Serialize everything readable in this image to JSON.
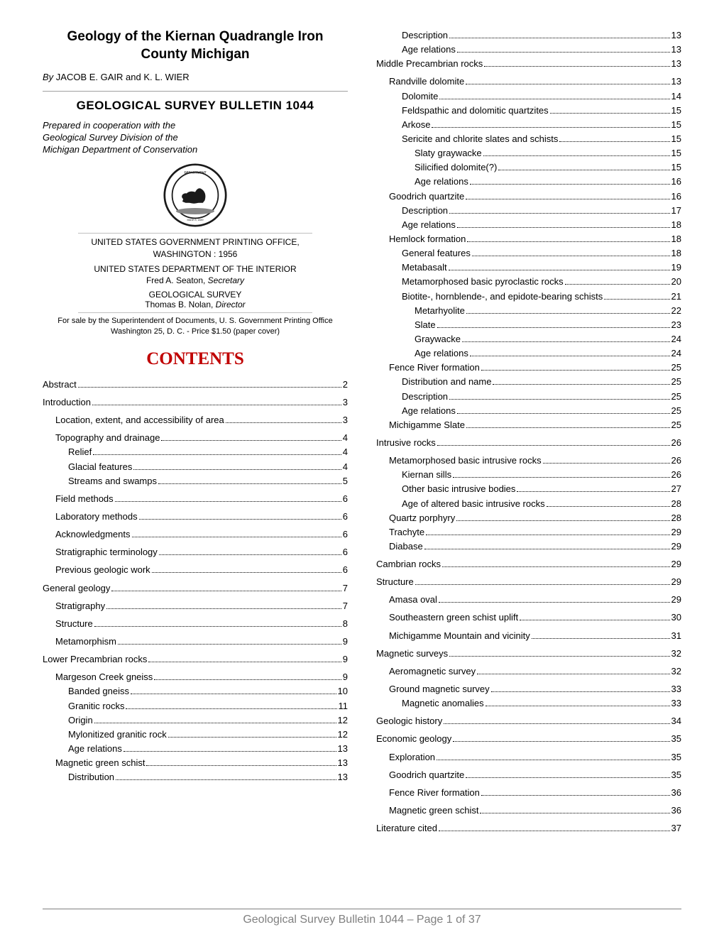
{
  "colors": {
    "text": "#000000",
    "background": "#ffffff",
    "contents_header": "#c00000",
    "hr_gray": "#a0a0a0",
    "footer_gray": "#808080",
    "seal_dark": "#1a1a1a",
    "seal_gray": "#888888"
  },
  "header": {
    "title": "Geology of the Kiernan Quadrangle Iron County Michigan",
    "byline_by": "By",
    "byline_authors": " JACOB E. GAIR and K. L. WIER",
    "bulletin": "GEOLOGICAL SURVEY BULLETIN 1044",
    "prepared_line1": "Prepared in cooperation with the",
    "prepared_line2": "Geological Survey Division of the",
    "prepared_line3": "Michigan Department of Conservation",
    "seal_top_text": "DEPARTMENT OF THE INTERIOR",
    "seal_bottom_text": "March 3, 1849"
  },
  "publisher": {
    "office": "UNITED STATES GOVERNMENT PRINTING OFFICE,",
    "location_year": "WASHINGTON : 1956",
    "department": "UNITED STATES DEPARTMENT OF THE INTERIOR",
    "secretary_name": "Fred A. Seaton, ",
    "secretary_title": "Secretary",
    "survey": "GEOLOGICAL SURVEY",
    "director_name": "Thomas B. Nolan, ",
    "director_title": "Director",
    "sale_line1": "For sale by the Superintendent of Documents, U. S. Government Printing Office",
    "sale_line2": "Washington 25, D. C. - Price $1.50 (paper cover)"
  },
  "contents_header": "CONTENTS",
  "toc_left": [
    {
      "label": "Abstract",
      "page": "2",
      "indent": 0,
      "spaced": true
    },
    {
      "label": "Introduction",
      "page": "3",
      "indent": 0,
      "spaced": true
    },
    {
      "label": "Location, extent, and accessibility of area",
      "page": "3",
      "indent": 1,
      "spaced": true
    },
    {
      "label": "Topography and drainage",
      "page": "4",
      "indent": 1,
      "spaced": true
    },
    {
      "label": "Relief",
      "page": "4",
      "indent": 2
    },
    {
      "label": "Glacial features",
      "page": "4",
      "indent": 2
    },
    {
      "label": "Streams and swamps",
      "page": "5",
      "indent": 2
    },
    {
      "label": "Field methods",
      "page": "6",
      "indent": 1,
      "spaced": true
    },
    {
      "label": "Laboratory methods",
      "page": "6",
      "indent": 1,
      "spaced": true
    },
    {
      "label": "Acknowledgments",
      "page": "6",
      "indent": 1,
      "spaced": true
    },
    {
      "label": "Stratigraphic terminology",
      "page": "6",
      "indent": 1,
      "spaced": true
    },
    {
      "label": "Previous geologic work",
      "page": "6",
      "indent": 1,
      "spaced": true
    },
    {
      "label": "General geology",
      "page": "7",
      "indent": 0,
      "spaced": true
    },
    {
      "label": "Stratigraphy",
      "page": "7",
      "indent": 1,
      "spaced": true
    },
    {
      "label": "Structure",
      "page": "8",
      "indent": 1,
      "spaced": true
    },
    {
      "label": "Metamorphism",
      "page": "9",
      "indent": 1,
      "spaced": true
    },
    {
      "label": "Lower Precambrian rocks",
      "page": "9",
      "indent": 0,
      "spaced": true
    },
    {
      "label": "Margeson Creek gneiss",
      "page": "9",
      "indent": 1,
      "spaced": true
    },
    {
      "label": "Banded gneiss",
      "page": "10",
      "indent": 2
    },
    {
      "label": "Granitic rocks",
      "page": "11",
      "indent": 2
    },
    {
      "label": "Origin",
      "page": "12",
      "indent": 2
    },
    {
      "label": "Mylonitized granitic rock",
      "page": "12",
      "indent": 2
    },
    {
      "label": "Age relations",
      "page": "13",
      "indent": 2
    },
    {
      "label": "Magnetic green schist",
      "page": "13",
      "indent": 1
    },
    {
      "label": "Distribution",
      "page": "13",
      "indent": 2
    }
  ],
  "toc_right": [
    {
      "label": "Description",
      "page": "13",
      "indent": 2
    },
    {
      "label": "Age relations",
      "page": "13",
      "indent": 2
    },
    {
      "label": "Middle Precambrian rocks",
      "page": "13",
      "indent": 0
    },
    {
      "label": "Randville dolomite",
      "page": "13",
      "indent": 1,
      "spaced": true
    },
    {
      "label": "Dolomite",
      "page": "14",
      "indent": 2
    },
    {
      "label": "Feldspathic and dolomitic quartzites",
      "page": "15",
      "indent": 2
    },
    {
      "label": "Arkose",
      "page": "15",
      "indent": 2
    },
    {
      "label": "Sericite and chlorite slates and schists",
      "page": "15",
      "indent": 2
    },
    {
      "label": "Slaty graywacke",
      "page": "15",
      "indent": 3
    },
    {
      "label": "Silicified dolomite(?)",
      "page": "15",
      "indent": 3
    },
    {
      "label": "Age relations",
      "page": "16",
      "indent": 3
    },
    {
      "label": "Goodrich quartzite",
      "page": "16",
      "indent": 1
    },
    {
      "label": "Description",
      "page": "17",
      "indent": 2
    },
    {
      "label": "Age relations",
      "page": "18",
      "indent": 2
    },
    {
      "label": "Hemlock formation",
      "page": "18",
      "indent": 1
    },
    {
      "label": "General features",
      "page": "18",
      "indent": 2
    },
    {
      "label": "Metabasalt",
      "page": "19",
      "indent": 2
    },
    {
      "label": "Metamorphosed basic pyroclastic rocks",
      "page": "20",
      "indent": 2
    },
    {
      "label": "Biotite-, hornblende-, and epidote-bearing schists",
      "page": "21",
      "indent": 2
    },
    {
      "label": "Metarhyolite",
      "page": "22",
      "indent": 3
    },
    {
      "label": "Slate",
      "page": "23",
      "indent": 3
    },
    {
      "label": "Graywacke",
      "page": "24",
      "indent": 3
    },
    {
      "label": "Age relations",
      "page": "24",
      "indent": 3
    },
    {
      "label": "Fence River formation",
      "page": "25",
      "indent": 1
    },
    {
      "label": "Distribution and name",
      "page": "25",
      "indent": 2
    },
    {
      "label": "Description",
      "page": "25",
      "indent": 2
    },
    {
      "label": "Age relations",
      "page": "25",
      "indent": 2
    },
    {
      "label": "Michigamme Slate",
      "page": "25",
      "indent": 1
    },
    {
      "label": "Intrusive rocks",
      "page": "26",
      "indent": 0,
      "spaced": true
    },
    {
      "label": "Metamorphosed basic intrusive rocks",
      "page": "26",
      "indent": 1,
      "spaced": true
    },
    {
      "label": "Kiernan sills",
      "page": "26",
      "indent": 2
    },
    {
      "label": "Other basic intrusive bodies",
      "page": "27",
      "indent": 2
    },
    {
      "label": "Age of altered basic intrusive rocks",
      "page": "28",
      "indent": 2
    },
    {
      "label": "Quartz porphyry",
      "page": "28",
      "indent": 1
    },
    {
      "label": "Trachyte",
      "page": "29",
      "indent": 1
    },
    {
      "label": "Diabase",
      "page": "29",
      "indent": 1
    },
    {
      "label": "Cambrian rocks",
      "page": "29",
      "indent": 0,
      "spaced": true
    },
    {
      "label": "Structure",
      "page": "29",
      "indent": 0,
      "spaced": true
    },
    {
      "label": "Amasa oval",
      "page": "29",
      "indent": 1,
      "spaced": true
    },
    {
      "label": "Southeastern green schist uplift",
      "page": "30",
      "indent": 1,
      "spaced": true
    },
    {
      "label": "Michigamme Mountain and vicinity",
      "page": "31",
      "indent": 1,
      "spaced": true
    },
    {
      "label": "Magnetic surveys",
      "page": "32",
      "indent": 0,
      "spaced": true
    },
    {
      "label": "Aeromagnetic survey",
      "page": "32",
      "indent": 1,
      "spaced": true
    },
    {
      "label": "Ground magnetic survey",
      "page": "33",
      "indent": 1,
      "spaced": true
    },
    {
      "label": "Magnetic anomalies",
      "page": "33",
      "indent": 2
    },
    {
      "label": "Geologic history",
      "page": "34",
      "indent": 0,
      "spaced": true
    },
    {
      "label": "Economic geology",
      "page": "35",
      "indent": 0,
      "spaced": true
    },
    {
      "label": "Exploration",
      "page": "35",
      "indent": 1,
      "spaced": true
    },
    {
      "label": "Goodrich quartzite",
      "page": "35",
      "indent": 1,
      "spaced": true
    },
    {
      "label": "Fence River formation",
      "page": "36",
      "indent": 1,
      "spaced": true
    },
    {
      "label": "Magnetic green schist",
      "page": "36",
      "indent": 1,
      "spaced": true
    },
    {
      "label": "Literature cited",
      "page": "37",
      "indent": 0,
      "spaced": true
    }
  ],
  "footer": {
    "text": "Geological Survey Bulletin 1044 – Page 1 of 37"
  }
}
